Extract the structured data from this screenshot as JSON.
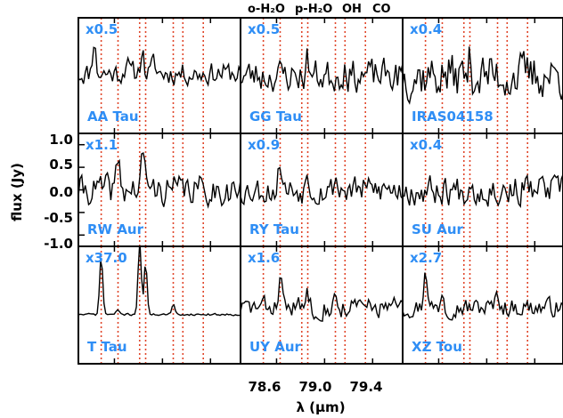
{
  "chart_data": {
    "type": "line",
    "header_labels": [
      "o-H₂O",
      "p-H₂O",
      "OH",
      "CO"
    ],
    "ylabel": "flux (Jy)",
    "xlabel": "λ (μm)",
    "x_ticks": [
      78.6,
      79.0,
      79.4
    ],
    "x_tick_labels": [
      "78.6",
      "79.0",
      "79.4"
    ],
    "xlim": [
      78.3,
      79.65
    ],
    "y_ticks": [
      1.0,
      0.5,
      0.0,
      -0.5,
      -1.0
    ],
    "y_tick_labels": [
      "1.0",
      "0.5",
      "0.0",
      "-0.5",
      "-1.0"
    ],
    "ylim": [
      -1.25,
      1.25
    ],
    "line_markers_um": [
      78.49,
      78.63,
      78.81,
      78.86,
      79.09,
      79.17,
      79.34
    ],
    "line_marker_color": "#e0462a",
    "trace_color": "#000000",
    "label_color": "#2f8ef5",
    "panels": [
      {
        "name": "AA Tau",
        "scale": "x0.5",
        "row": 0,
        "col": 0,
        "seed": 11,
        "noise": 0.22,
        "base": 0.05,
        "peaks": [
          [
            78.43,
            0.75
          ],
          [
            78.7,
            0.3
          ],
          [
            78.83,
            0.55
          ],
          [
            78.93,
            0.25
          ]
        ]
      },
      {
        "name": "GG Tau",
        "scale": "x0.5",
        "row": 0,
        "col": 1,
        "seed": 23,
        "noise": 0.32,
        "base": 0.0,
        "peaks": [
          [
            78.86,
            0.35
          ],
          [
            79.17,
            0.25
          ]
        ]
      },
      {
        "name": "IRAS04158",
        "scale": "x0.4",
        "row": 0,
        "col": 2,
        "seed": 37,
        "noise": 0.45,
        "base": 0.0,
        "peaks": [
          [
            78.86,
            0.3
          ]
        ]
      },
      {
        "name": "RW Aur",
        "scale": "x1.1",
        "row": 1,
        "col": 0,
        "seed": 41,
        "noise": 0.3,
        "base": 0.0,
        "peaks": [
          [
            78.63,
            0.7
          ],
          [
            78.83,
            0.55
          ],
          [
            78.86,
            0.45
          ]
        ]
      },
      {
        "name": "RY Tau",
        "scale": "x0.9",
        "row": 1,
        "col": 1,
        "seed": 53,
        "noise": 0.28,
        "base": 0.0,
        "peaks": [
          [
            78.63,
            0.7
          ],
          [
            78.86,
            0.45
          ],
          [
            79.09,
            0.3
          ]
        ]
      },
      {
        "name": "SU Aur",
        "scale": "x0.4",
        "row": 1,
        "col": 2,
        "seed": 67,
        "noise": 0.3,
        "base": 0.0,
        "peaks": [
          [
            78.86,
            0.25
          ]
        ]
      },
      {
        "name": "T Tau",
        "scale": "x37.0",
        "row": 2,
        "col": 0,
        "seed": 71,
        "noise": 0.02,
        "base": -0.2,
        "peaks": [
          [
            78.49,
            1.25
          ],
          [
            78.63,
            0.1
          ],
          [
            78.81,
            1.6
          ],
          [
            78.86,
            1.1
          ],
          [
            79.09,
            0.2
          ]
        ]
      },
      {
        "name": "UY Aur",
        "scale": "x1.6",
        "row": 2,
        "col": 1,
        "seed": 83,
        "noise": 0.2,
        "base": -0.05,
        "peaks": [
          [
            78.63,
            0.85
          ],
          [
            78.86,
            0.35
          ],
          [
            79.09,
            0.2
          ]
        ]
      },
      {
        "name": "XZ Tou",
        "scale": "x2.7",
        "row": 2,
        "col": 2,
        "seed": 97,
        "noise": 0.18,
        "base": -0.05,
        "peaks": [
          [
            78.49,
            0.95
          ],
          [
            78.63,
            0.4
          ],
          [
            79.09,
            0.35
          ]
        ]
      }
    ]
  }
}
